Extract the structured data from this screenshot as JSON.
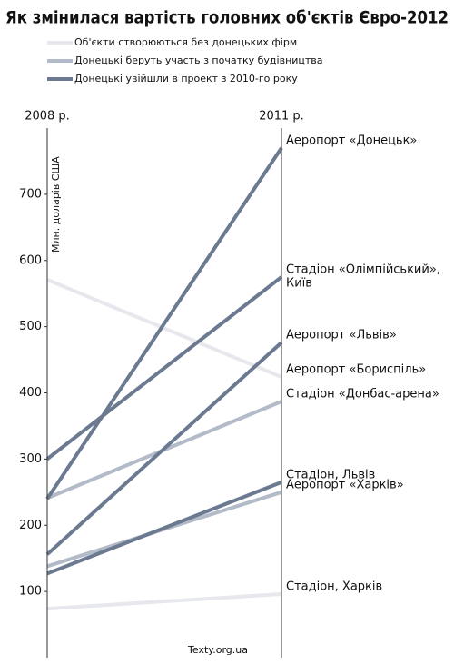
{
  "chart_data": {
    "type": "slope",
    "title": "Як змінилася вартість головних об'єктів Євро-2012",
    "y_label": "Млн. доларів США",
    "source": "Texty.org.ua",
    "categories": [
      "2008 р.",
      "2011 р."
    ],
    "ylim": [
      0,
      800
    ],
    "yticks": [
      100,
      200,
      300,
      400,
      500,
      600,
      700
    ],
    "series": [
      {
        "name": "Об'єкти створюються без донецьких фірм",
        "color": "#e6e8ee",
        "items": [
          {
            "label": [
              "Аеропорт «Бориспіль»"
            ],
            "values": [
              571,
              424
            ]
          },
          {
            "label": [
              "Стадіон, Харків"
            ],
            "values": [
              74,
              96
            ]
          }
        ]
      },
      {
        "name": "Донецькі беруть участь з початку будівництва",
        "color": "#b3bac8",
        "items": [
          {
            "label": [
              "Стадіон «Донбас-арена»"
            ],
            "values": [
              241,
              387
            ]
          },
          {
            "label": [
              "Аеропорт «Харків»"
            ],
            "values": [
              138,
              250
            ]
          }
        ]
      },
      {
        "name": "Донецькі увійшли в проект з 2010-го року",
        "color": "#6b7a90",
        "items": [
          {
            "label": [
              "Аеропорт «Донецьк»"
            ],
            "values": [
              240,
              770
            ]
          },
          {
            "label": [
              "Стадіон «Олімпійський»,",
              "Київ"
            ],
            "values": [
              300,
              575
            ]
          },
          {
            "label": [
              "Аеропорт «Львів»"
            ],
            "values": [
              156,
              476
            ]
          },
          {
            "label": [
              "Стадіон, Львів"
            ],
            "values": [
              127,
              265
            ]
          }
        ]
      }
    ]
  }
}
